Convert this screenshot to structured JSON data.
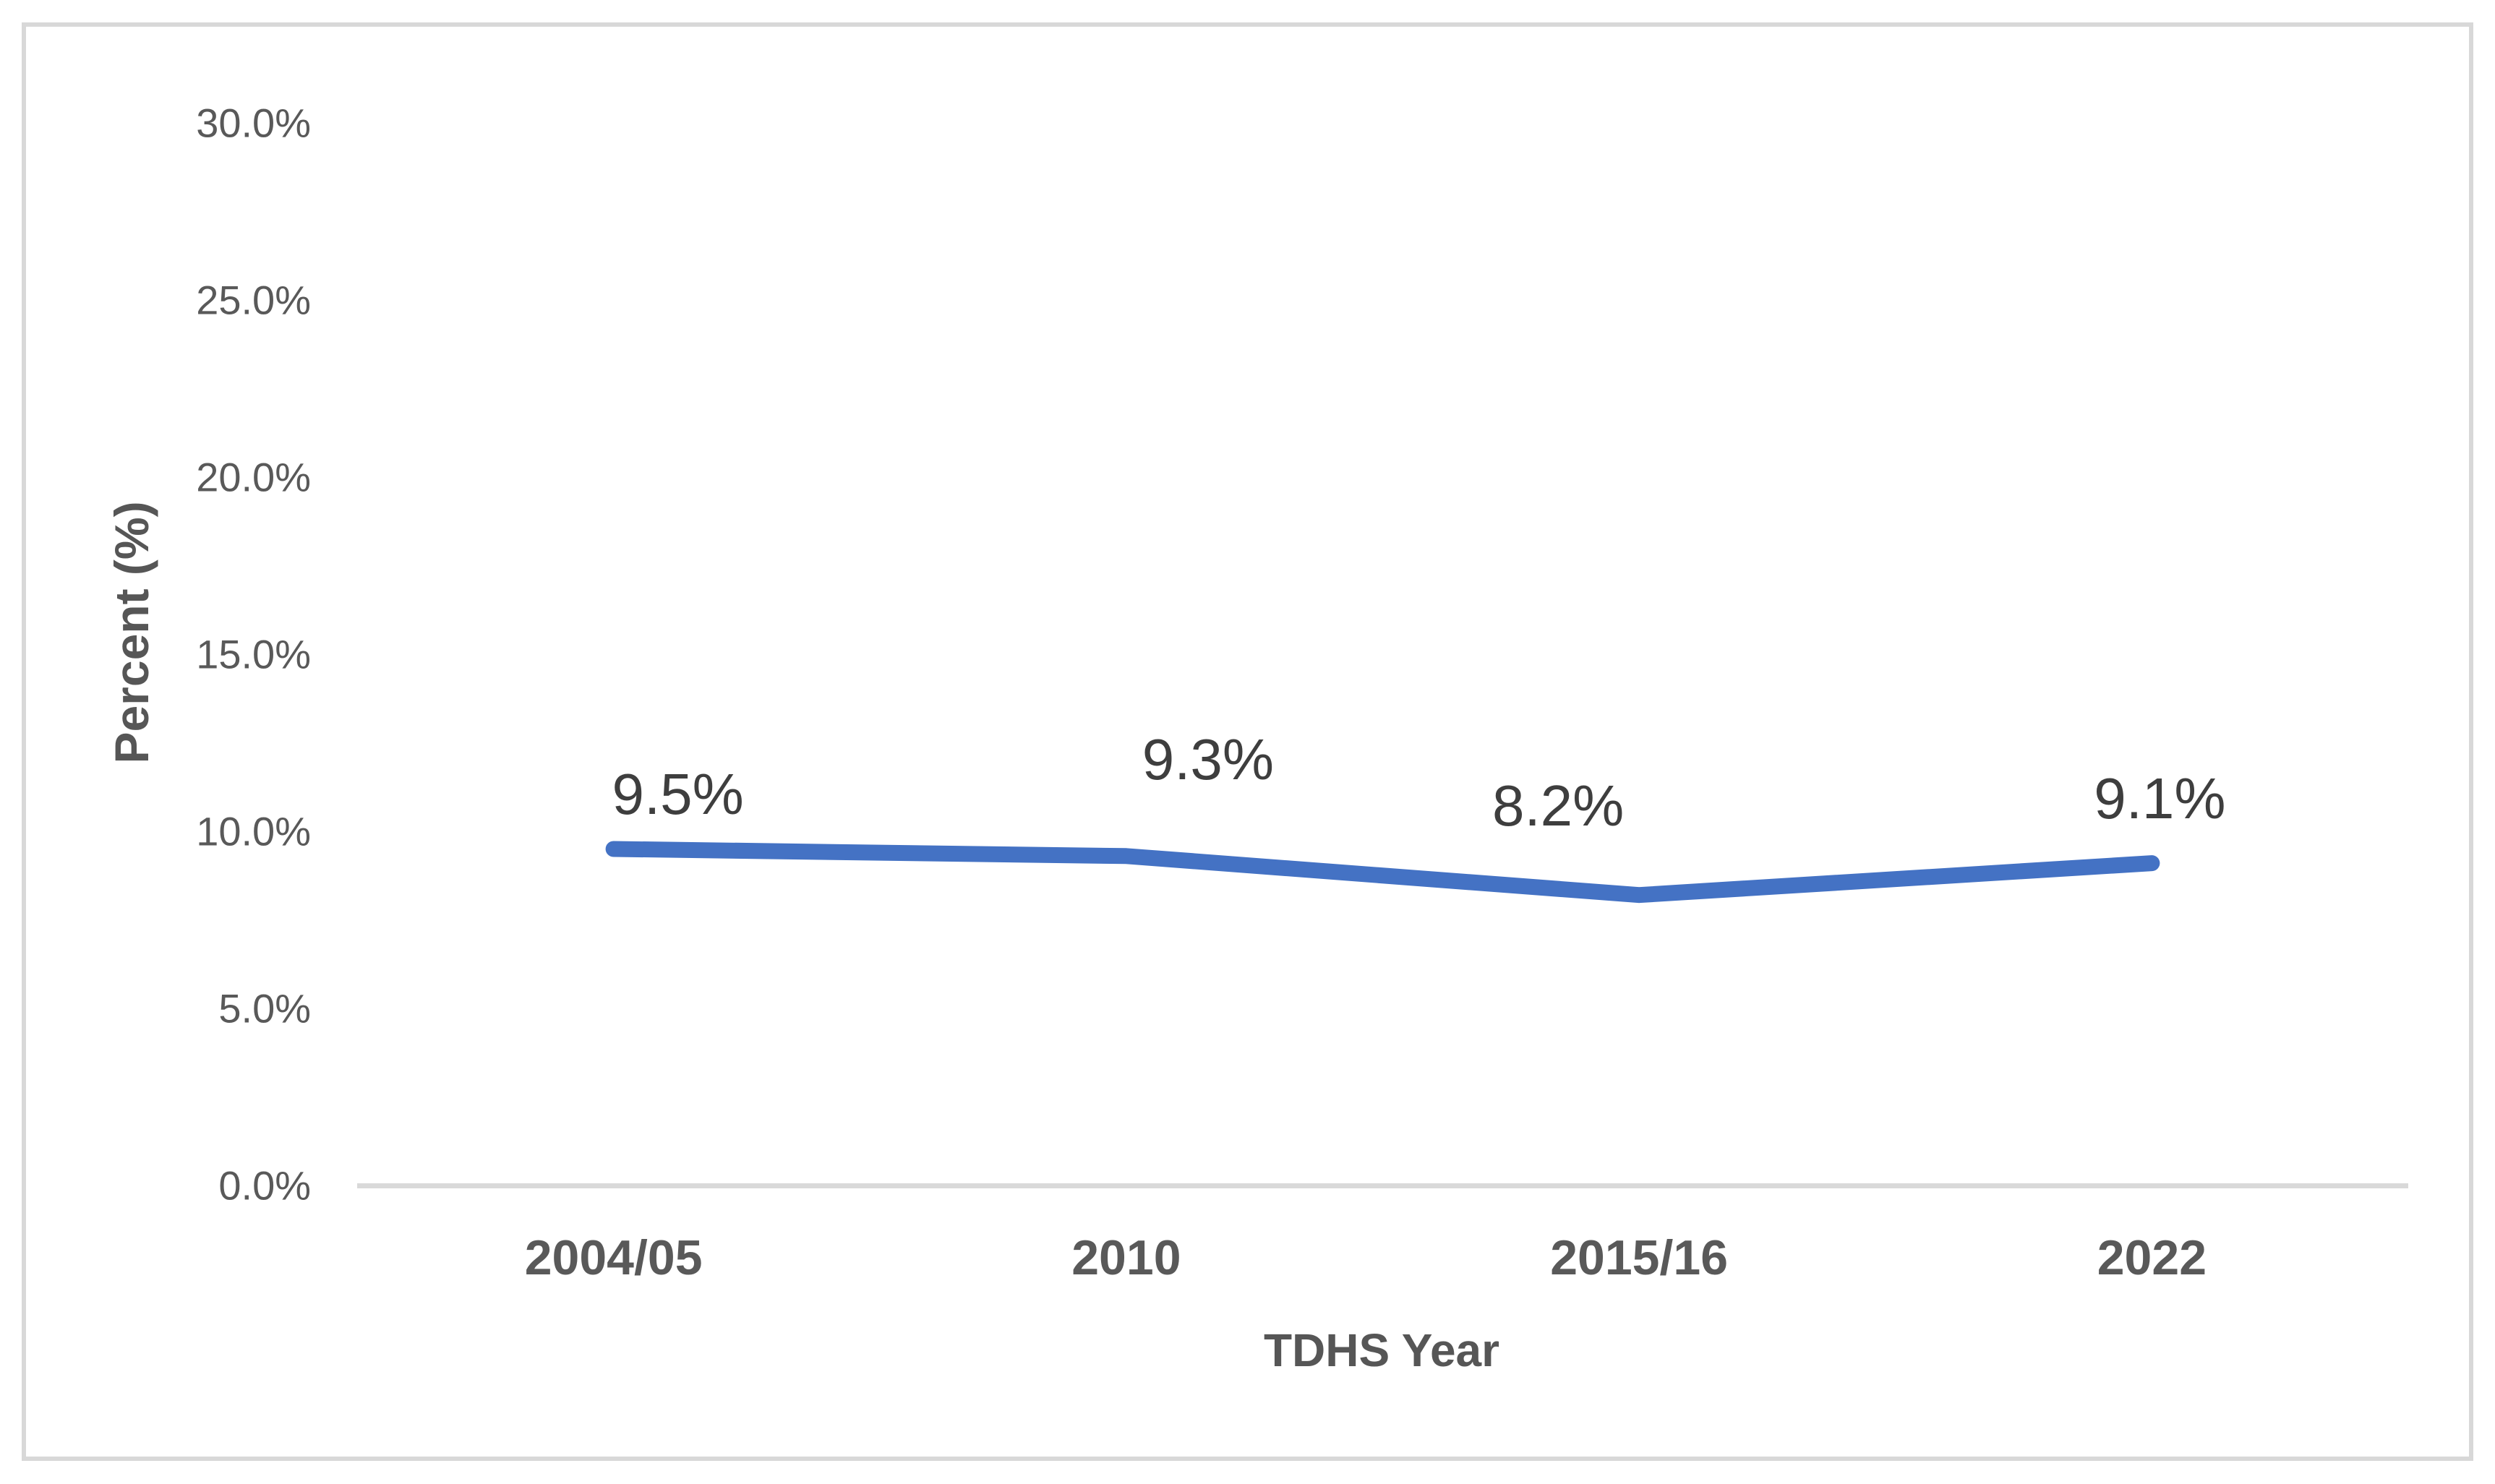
{
  "chart_data": {
    "type": "line",
    "title": "",
    "categories": [
      "2004/05",
      "2010",
      "2015/16",
      "2022"
    ],
    "values": [
      9.5,
      9.3,
      8.2,
      9.1
    ],
    "data_labels": [
      "9.5%",
      "9.3%",
      "8.2%",
      "9.1%"
    ],
    "xlabel": "TDHS Year",
    "ylabel": "Percent (%)",
    "ylim": [
      0,
      30
    ],
    "ytick_step": 5,
    "ytick_labels": [
      "0.0%",
      "5.0%",
      "10.0%",
      "15.0%",
      "20.0%",
      "25.0%",
      "30.0%"
    ],
    "line_color": "#4472C4",
    "axis_line_color": "#D9D9D9",
    "frame_color": "#D8D8D8",
    "tick_label_color": "#595959",
    "data_label_color": "#3E3E3E",
    "grid": false,
    "legend": false,
    "legend_position": "none"
  }
}
